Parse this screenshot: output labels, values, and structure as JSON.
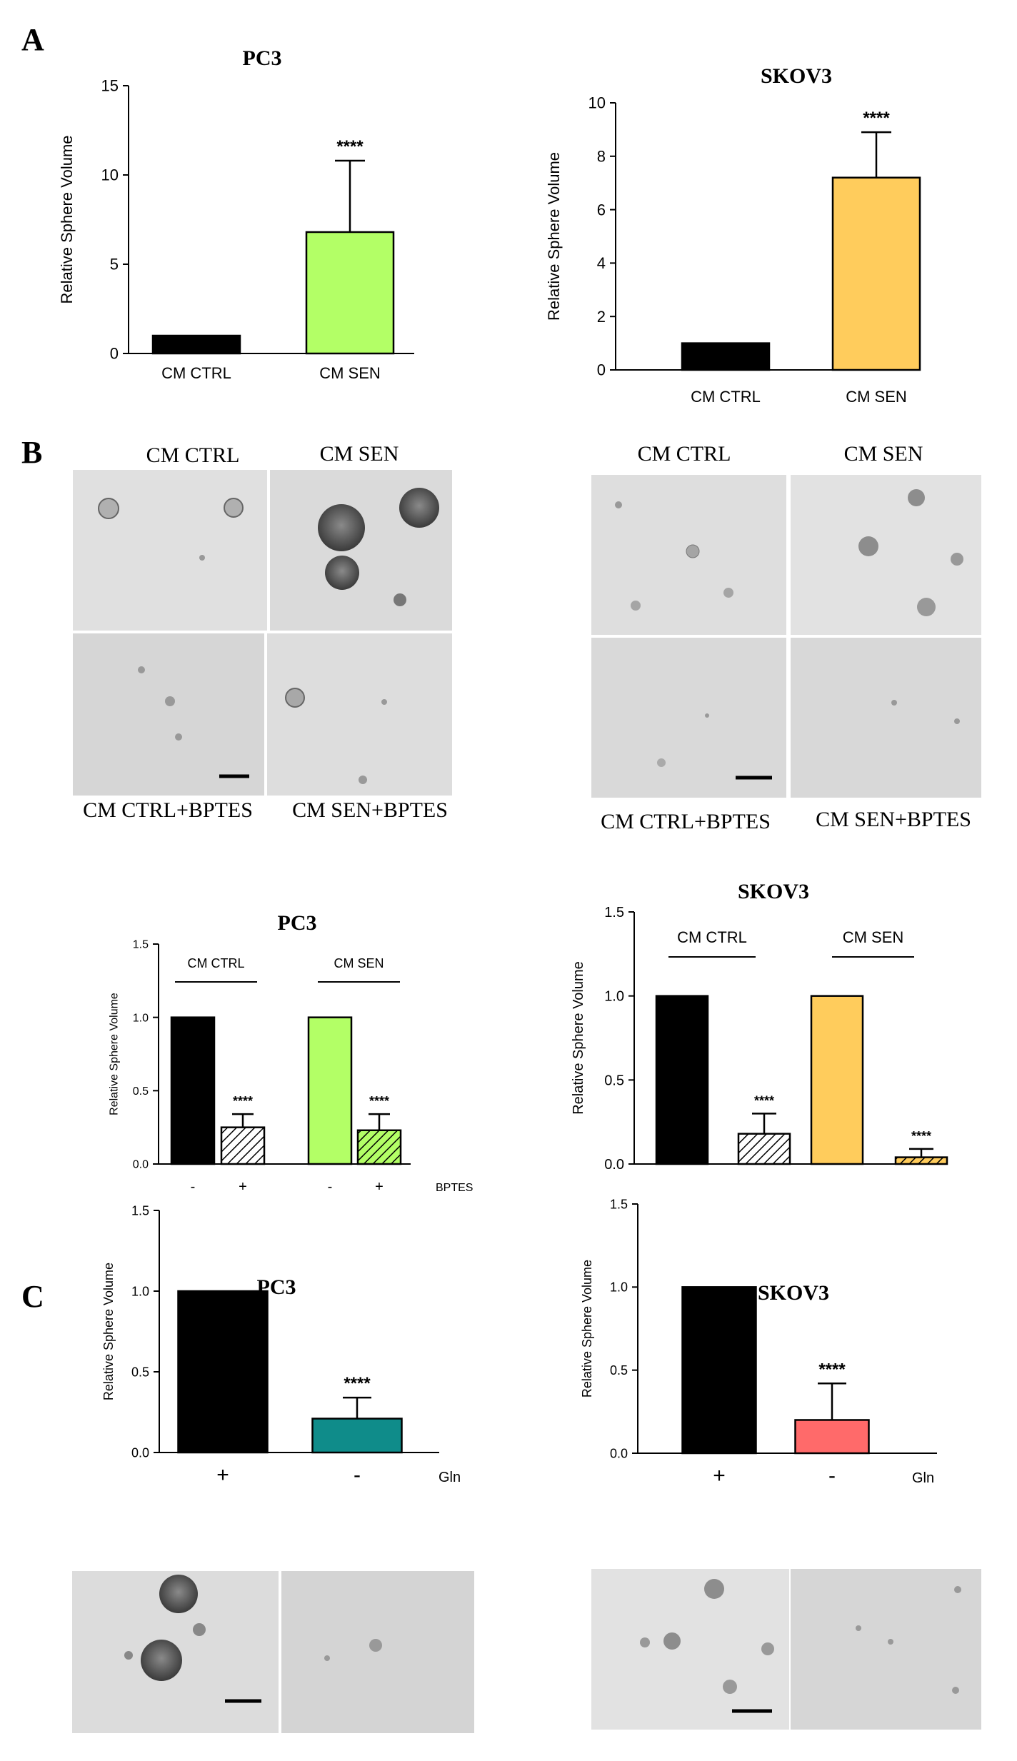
{
  "panel_labels": [
    "A",
    "B",
    "C"
  ],
  "images": {
    "b_left": [
      "CM CTRL",
      "CM SEN",
      "CM CTRL+BPTES",
      "CM SEN+BPTES"
    ],
    "b_right": [
      "CM CTRL",
      "CM SEN",
      "CM CTRL+BPTES",
      "CM SEN+BPTES"
    ]
  },
  "colors": {
    "black": "#000000",
    "green": "#b3ff66",
    "orange": "#ffcc5c",
    "teal": "#0f8c8a",
    "salmon": "#ff6a6a",
    "micrograph_bg": "#dcdcdc"
  },
  "chart_data": [
    {
      "id": "a_pc3",
      "type": "bar",
      "title": "PC3",
      "ylabel": "Relative Sphere Volume",
      "ylim": [
        0,
        15
      ],
      "yticks": [
        "0",
        "5",
        "10",
        "15"
      ],
      "categories": [
        "CM CTRL",
        "CM SEN"
      ],
      "values": [
        1,
        6.8
      ],
      "errors": [
        0,
        4.0
      ],
      "colors": [
        "#000000",
        "#b3ff66"
      ],
      "hatch": [
        false,
        false
      ],
      "annotations": [
        "",
        "****"
      ]
    },
    {
      "id": "a_skov3",
      "type": "bar",
      "title": "SKOV3",
      "ylabel": "Relative Sphere Volume",
      "ylim": [
        0,
        10
      ],
      "yticks": [
        "0",
        "2",
        "4",
        "6",
        "8",
        "10"
      ],
      "categories": [
        "CM CTRL",
        "CM SEN"
      ],
      "values": [
        1,
        7.2
      ],
      "errors": [
        0,
        1.7
      ],
      "colors": [
        "#000000",
        "#ffcc5c"
      ],
      "hatch": [
        false,
        false
      ],
      "annotations": [
        "",
        "****"
      ]
    },
    {
      "id": "b_pc3",
      "type": "bar",
      "title": "PC3",
      "ylabel": "Relative Sphere Volume",
      "ylim": [
        0,
        1.5
      ],
      "yticks": [
        "0.0",
        "0.5",
        "1.0",
        "1.5"
      ],
      "categories": [
        "-",
        "+",
        "-",
        "+"
      ],
      "values": [
        1.0,
        0.25,
        1.0,
        0.23
      ],
      "errors": [
        0,
        0.09,
        0,
        0.11
      ],
      "colors": [
        "#000000",
        "#ffffff",
        "#b3ff66",
        "#b3ff66"
      ],
      "hatch": [
        false,
        true,
        false,
        true
      ],
      "annotations": [
        "",
        "****",
        "",
        "****"
      ],
      "groups": [
        "CM CTRL",
        "CM SEN"
      ],
      "x_suffix": "BPTES"
    },
    {
      "id": "b_skov3",
      "type": "bar",
      "title": "SKOV3",
      "ylabel": "Relative Sphere Volume",
      "ylim": [
        0,
        1.5
      ],
      "yticks": [
        "0.0",
        "0.5",
        "1.0",
        "1.5"
      ],
      "categories": [
        "",
        "",
        "",
        ""
      ],
      "values": [
        1.0,
        0.18,
        1.0,
        0.04
      ],
      "errors": [
        0,
        0.12,
        0,
        0.05
      ],
      "colors": [
        "#000000",
        "#ffffff",
        "#ffcc5c",
        "#ffcc5c"
      ],
      "hatch": [
        false,
        true,
        false,
        true
      ],
      "annotations": [
        "",
        "****",
        "",
        "****"
      ],
      "groups": [
        "CM CTRL",
        "CM SEN"
      ]
    },
    {
      "id": "c_pc3",
      "type": "bar",
      "title": "PC3",
      "ylabel": "Relative Sphere Volume",
      "ylim": [
        0,
        1.5
      ],
      "yticks": [
        "0.0",
        "0.5",
        "1.0",
        "1.5"
      ],
      "categories": [
        "+",
        "-"
      ],
      "values": [
        1.0,
        0.21
      ],
      "errors": [
        0,
        0.13
      ],
      "colors": [
        "#000000",
        "#0f8c8a"
      ],
      "hatch": [
        false,
        false
      ],
      "annotations": [
        "",
        "****"
      ],
      "x_suffix": "Gln"
    },
    {
      "id": "c_skov3",
      "type": "bar",
      "title": "SKOV3",
      "ylabel": "Relative Sphere Volume",
      "ylim": [
        0,
        1.5
      ],
      "yticks": [
        "0.0",
        "0.5",
        "1.0",
        "1.5"
      ],
      "categories": [
        "+",
        "-"
      ],
      "values": [
        1.0,
        0.2
      ],
      "errors": [
        0,
        0.22
      ],
      "colors": [
        "#000000",
        "#ff6a6a"
      ],
      "hatch": [
        false,
        false
      ],
      "annotations": [
        "",
        "****"
      ],
      "x_suffix": "Gln"
    }
  ]
}
